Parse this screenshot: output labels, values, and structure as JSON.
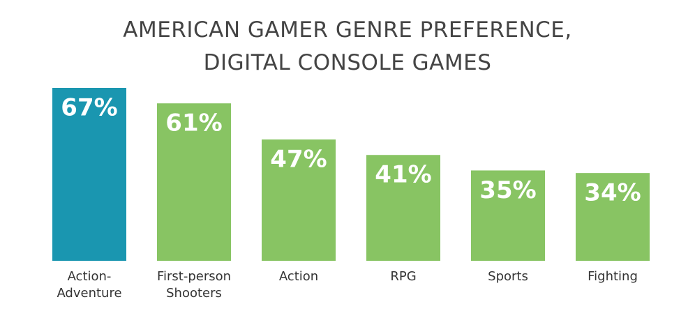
{
  "chart_data": {
    "type": "bar",
    "title": "AMERICAN GAMER GENRE PREFERENCE, DIGITAL CONSOLE GAMES",
    "categories": [
      "Action-Adventure",
      "First-person Shooters",
      "Action",
      "RPG",
      "Sports",
      "Fighting"
    ],
    "values": [
      67,
      61,
      47,
      41,
      35,
      34
    ],
    "value_labels": [
      "67%",
      "61%",
      "47%",
      "41%",
      "35%",
      "34%"
    ],
    "colors": [
      "#1a96b0",
      "#88c463",
      "#88c463",
      "#88c463",
      "#88c463",
      "#88c463"
    ]
  }
}
